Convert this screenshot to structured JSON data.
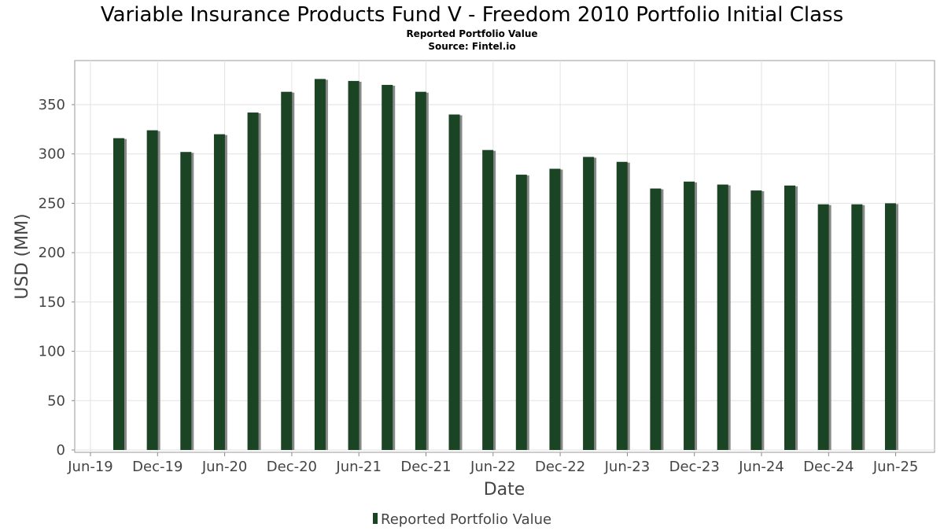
{
  "chart_data": {
    "type": "bar",
    "title": "Variable Insurance Products Fund V - Freedom 2010 Portfolio Initial Class",
    "subtitle": "Reported Portfolio Value",
    "source": "Source: Fintel.io",
    "xlabel": "Date",
    "ylabel": "USD (MM)",
    "ylim": [
      0,
      385
    ],
    "yticks": [
      0,
      50,
      100,
      150,
      200,
      250,
      300,
      350
    ],
    "xticks": [
      "Jun-19",
      "Dec-19",
      "Jun-20",
      "Dec-20",
      "Jun-21",
      "Dec-21",
      "Jun-22",
      "Dec-22",
      "Jun-23",
      "Dec-23",
      "Jun-24",
      "Dec-24",
      "Jun-25"
    ],
    "grid": true,
    "legend": {
      "label": "Reported Portfolio Value",
      "placement": "bottom"
    },
    "colors": {
      "bar": "#1a4423",
      "shadow": "#888888"
    },
    "categories": [
      "Sep-19",
      "Dec-19",
      "Mar-20",
      "Jun-20",
      "Sep-20",
      "Dec-20",
      "Mar-21",
      "Jun-21",
      "Sep-21",
      "Dec-21",
      "Mar-22",
      "Jun-22",
      "Sep-22",
      "Dec-22",
      "Mar-23",
      "Jun-23",
      "Sep-23",
      "Dec-23",
      "Mar-24",
      "Jun-24",
      "Sep-24",
      "Dec-24",
      "Mar-25",
      "Jun-25"
    ],
    "values": [
      316,
      324,
      302,
      320,
      342,
      363,
      376,
      374,
      370,
      363,
      340,
      304,
      279,
      285,
      297,
      292,
      265,
      272,
      269,
      263,
      268,
      249,
      249,
      250
    ]
  }
}
